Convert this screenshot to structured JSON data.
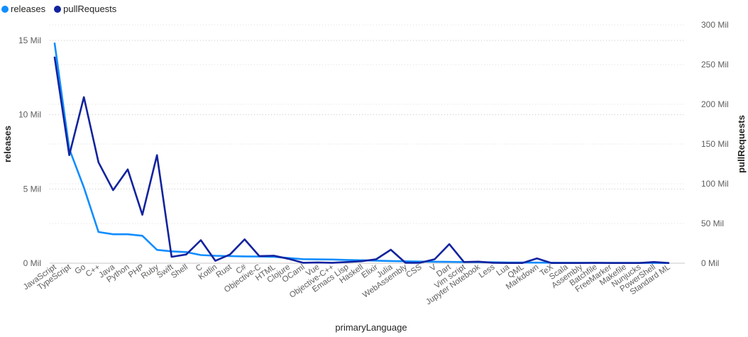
{
  "chart_data": {
    "type": "line",
    "xlabel": "primaryLanguage",
    "ylabel_left": "releases",
    "ylabel_right": "pullRequests",
    "left_ticks": [
      "0 Mil",
      "5 Mil",
      "10 Mil",
      "15 Mil"
    ],
    "left_tick_values": [
      0,
      5000000,
      10000000,
      15000000
    ],
    "right_ticks": [
      "0 Mil",
      "50 Mil",
      "100 Mil",
      "150 Mil",
      "200 Mil",
      "250 Mil",
      "300 Mil"
    ],
    "right_tick_values": [
      0,
      50000000,
      100000000,
      150000000,
      200000000,
      250000000,
      300000000
    ],
    "ylim_left": [
      0,
      16000000
    ],
    "ylim_right": [
      0,
      300000000
    ],
    "grid": true,
    "legend_position": "top-left",
    "categories": [
      "JavaScript",
      "TypeScript",
      "Go",
      "C++",
      "Java",
      "Python",
      "PHP",
      "Ruby",
      "Swift",
      "Shell",
      "C",
      "Kotlin",
      "Rust",
      "C#",
      "Objective-C",
      "HTML",
      "Clojure",
      "OCaml",
      "Vue",
      "Objective-C++",
      "Emacs Lisp",
      "Haskell",
      "Elixir",
      "Julia",
      "WebAssembly",
      "CSS",
      "V",
      "Dart",
      "Vim script",
      "Jupyter Notebook",
      "Less",
      "Lua",
      "QML",
      "Markdown",
      "TeX",
      "Scala",
      "Assembly",
      "Batchfile",
      "FreeMarker",
      "Makefile",
      "Nunjucks",
      "PowerShell",
      "Standard ML"
    ],
    "series": [
      {
        "name": "releases",
        "axis": "left",
        "color": "#118dff",
        "values": [
          14800000,
          7700000,
          5100000,
          2100000,
          1950000,
          1950000,
          1850000,
          900000,
          800000,
          750000,
          550000,
          500000,
          480000,
          460000,
          450000,
          430000,
          350000,
          270000,
          260000,
          250000,
          220000,
          200000,
          170000,
          150000,
          130000,
          110000,
          100000,
          90000,
          80000,
          70000,
          60000,
          50000,
          45000,
          40000,
          35000,
          30000,
          28000,
          26000,
          24000,
          22000,
          20000,
          18000,
          15000
        ]
      },
      {
        "name": "pullRequests",
        "axis": "right",
        "color": "#12239e",
        "values": [
          259000000,
          136000000,
          209000000,
          127000000,
          92000000,
          118000000,
          61000000,
          136000000,
          8000000,
          11000000,
          29000000,
          3000000,
          11000000,
          30000000,
          9000000,
          9500000,
          5500000,
          500000,
          1000000,
          500000,
          1500000,
          2500000,
          5000000,
          17000000,
          500000,
          500000,
          5000000,
          24000000,
          1500000,
          2000000,
          500000,
          300000,
          300000,
          6000000,
          300000,
          300000,
          300000,
          500000,
          300000,
          300000,
          300000,
          1500000,
          300000
        ]
      }
    ]
  }
}
